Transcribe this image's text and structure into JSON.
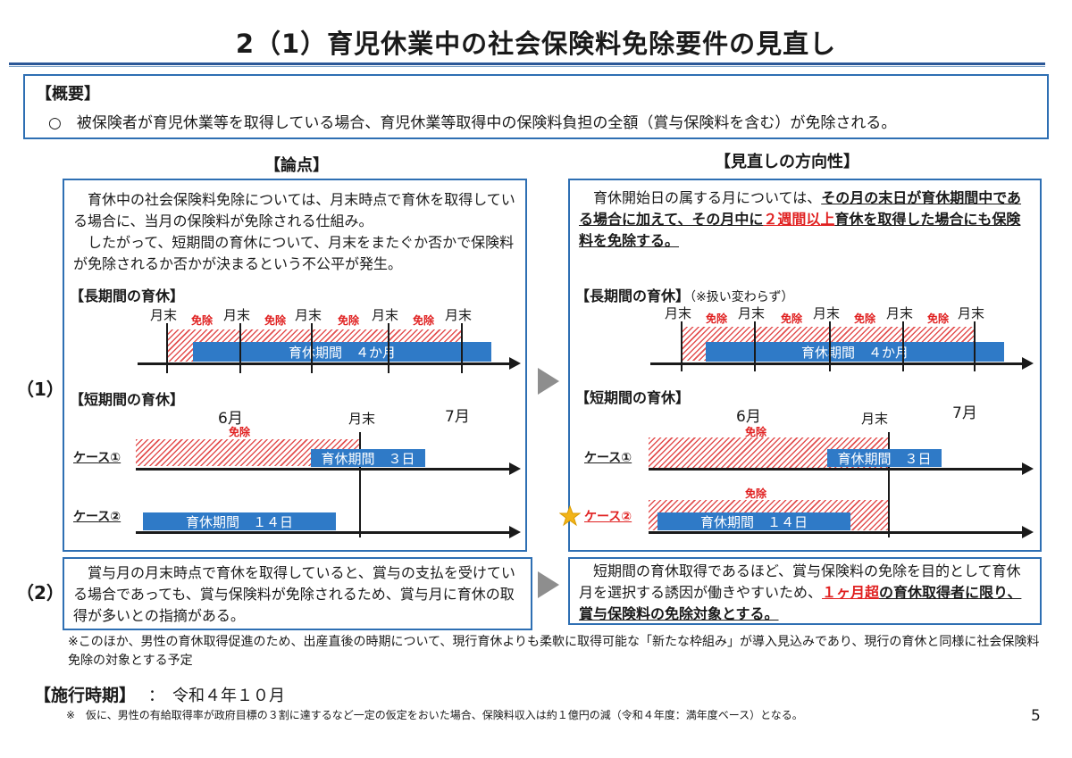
{
  "title": "2（1）育児休業中の社会保険料免除要件の見直し",
  "overview": {
    "heading": "【概要】",
    "text": "○　被保険者が育児休業等を取得している場合、育児休業等取得中の保険料負担の全額（賞与保険料を含む）が免除される。"
  },
  "columns": {
    "issues": "【論点】",
    "direction": "【見直しの方向性】"
  },
  "row_labels": {
    "row1": "（1）",
    "row2": "（2）"
  },
  "left1": {
    "para1": "　育休中の社会保険料免除については、月末時点で育休を取得している場合に、当月の保険料が免除される仕組み。",
    "para2": "　したがって、短期間の育休について、月末をまたぐか否かで保険料が免除されるか否かが決まるという不公平が発生。",
    "long_head": "【長期間の育休】",
    "short_head": "【短期間の育休】"
  },
  "right1": {
    "text_a": "　育休開始日の属する月については、",
    "text_b": "その月の末日が育休期間中である場合に加えて、その月中に",
    "text_c": "２週間以上",
    "text_d": "育休を取得した場合にも保険料を免除する。",
    "long_head": "【長期間の育休】",
    "long_note": "（※扱い変わらず）",
    "short_head": "【短期間の育休】"
  },
  "timeline": {
    "month_end": "月末",
    "exempt": "免除",
    "long_bar": "育休期間　４か月",
    "june": "6月",
    "july": "7月",
    "case1": "ケース①",
    "case2": "ケース②",
    "bar_3days": "育休期間　３日",
    "bar_14days": "育休期間　１４日"
  },
  "left2": {
    "text": "　賞与月の月末時点で育休を取得していると、賞与の支払を受けている場合であっても、賞与保険料が免除されるため、賞与月に育休の取得が多いとの指摘がある。"
  },
  "right2": {
    "text_a": "　短期間の育休取得であるほど、賞与保険料の免除を目的として育休月を選択する誘因が働きやすいため、",
    "text_b": "１ヶ月超",
    "text_c": "の育休取得者に限り、賞与保険料の免除対象とする。"
  },
  "note1": "※このほか、男性の育休取得促進のため、出産直後の時期について、現行育休よりも柔軟に取得可能な「新たな枠組み」が導入見込みであり、現行の育休と同様に社会保険料免除の対象とする予定",
  "enforcement": {
    "heading": "【施行時期】",
    "value": "：　令和４年１０月"
  },
  "note2": "※　仮に、男性の有給取得率が政府目標の３割に達するなど一定の仮定をおいた場合、保険料収入は約１億円の減（令和４年度：満年度ベース）となる。",
  "page_number": "5",
  "colors": {
    "frame": "#2e6fb3",
    "bar": "#2f7ac7",
    "red": "#e02020",
    "star": "#f2b418"
  },
  "icons": {
    "arrow": "right-triangle",
    "star": "star-icon"
  }
}
